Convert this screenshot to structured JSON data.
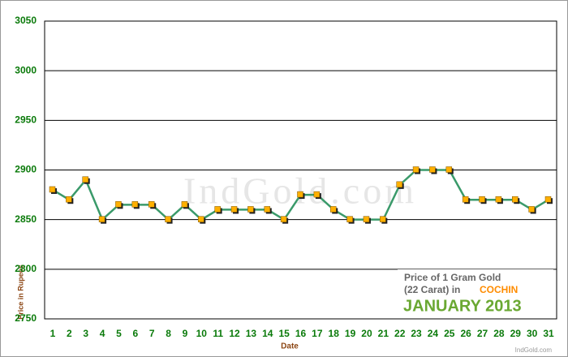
{
  "chart_data": {
    "type": "line",
    "x_label": "Date",
    "y_label": "Price in Rupees",
    "categories": [
      "1",
      "2",
      "3",
      "4",
      "5",
      "6",
      "7",
      "8",
      "9",
      "10",
      "11",
      "12",
      "13",
      "14",
      "15",
      "16",
      "17",
      "18",
      "19",
      "20",
      "21",
      "22",
      "23",
      "24",
      "25",
      "26",
      "27",
      "28",
      "29",
      "30",
      "31"
    ],
    "series": [
      {
        "color": "#3a9a6a",
        "marker_color": "#ffb000",
        "values": [
          2880,
          2870,
          2890,
          2850,
          2865,
          2865,
          2865,
          2850,
          2865,
          2850,
          2860,
          2860,
          2860,
          2860,
          2850,
          2875,
          2875,
          2860,
          2850,
          2850,
          2850,
          2885,
          2900,
          2900,
          2900,
          2870,
          2870,
          2870,
          2870,
          2860,
          2870
        ]
      }
    ],
    "ylim": [
      2750,
      3050
    ],
    "yticks": [
      2750,
      2800,
      2850,
      2900,
      2950,
      3000,
      3050
    ],
    "grid": true,
    "annotation": {
      "line1": "Price of 1 Gram Gold",
      "line2": "(22 Carat) in",
      "city": "COCHIN",
      "period": "JANUARY 2013"
    },
    "watermark": "IndGold.com",
    "credit": "IndGold.com"
  }
}
